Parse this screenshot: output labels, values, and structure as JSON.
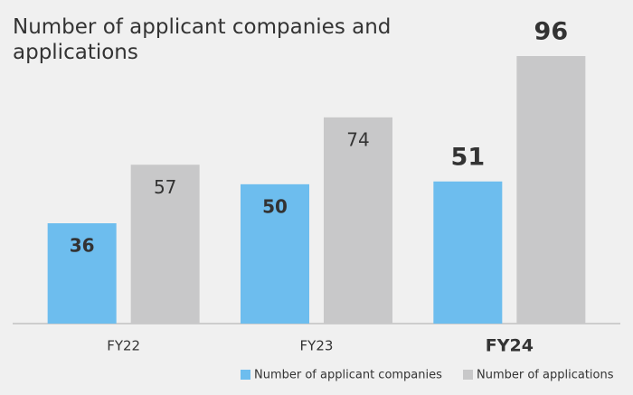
{
  "chart_data": {
    "type": "bar",
    "title": "Number of applicant companies and applications",
    "categories": [
      "FY22",
      "FY23",
      "FY24"
    ],
    "series": [
      {
        "name": "Number of applicant companies",
        "color": "#6dbdee",
        "values": [
          36,
          50,
          51
        ]
      },
      {
        "name": "Number of applications",
        "color": "#c8c8c9",
        "values": [
          57,
          74,
          96
        ]
      }
    ],
    "legend": "bottom-right"
  }
}
